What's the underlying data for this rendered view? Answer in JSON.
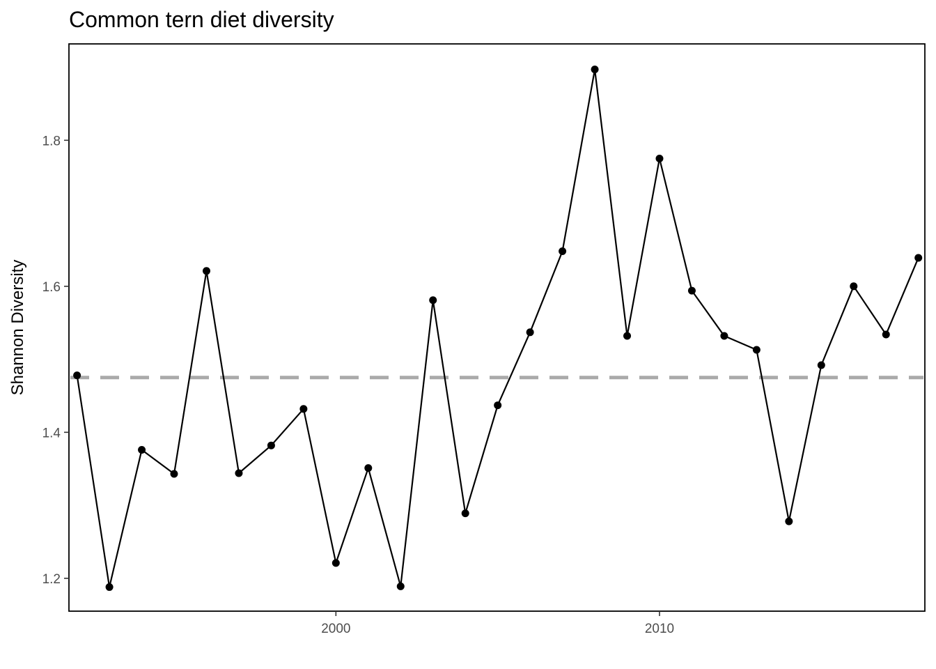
{
  "chart_data": {
    "type": "line",
    "title": "Common tern diet diversity",
    "xlabel": "",
    "ylabel": "Shannon Diversity",
    "x_ticks": [
      2000,
      2010
    ],
    "y_ticks": [
      1.2,
      1.4,
      1.6,
      1.8
    ],
    "y_tick_labels": [
      "1.2",
      "1.4",
      "1.6",
      "1.8"
    ],
    "xlim": [
      1991.75,
      2018.2
    ],
    "ylim": [
      1.155,
      1.932
    ],
    "grid": false,
    "legend": "none",
    "reference_line": {
      "y": 1.475,
      "style": "dashed",
      "color": "#aaaaaa"
    },
    "line_color": "#000000",
    "point_color": "#000000",
    "series": [
      {
        "x": [
          1992,
          1993,
          1994,
          1995,
          1996,
          1997,
          1998,
          1999,
          2000,
          2001,
          2002,
          2003,
          2004,
          2005,
          2006,
          2007,
          2008,
          2009,
          2010,
          2011,
          2012,
          2013,
          2014,
          2015,
          2016,
          2017,
          2018
        ],
        "values": [
          1.478,
          1.188,
          1.376,
          1.343,
          1.621,
          1.344,
          1.382,
          1.432,
          1.221,
          1.351,
          1.189,
          1.581,
          1.289,
          1.437,
          1.537,
          1.648,
          1.897,
          1.532,
          1.775,
          1.594,
          1.532,
          1.513,
          1.278,
          1.492,
          1.6,
          1.534,
          1.639
        ]
      }
    ]
  }
}
